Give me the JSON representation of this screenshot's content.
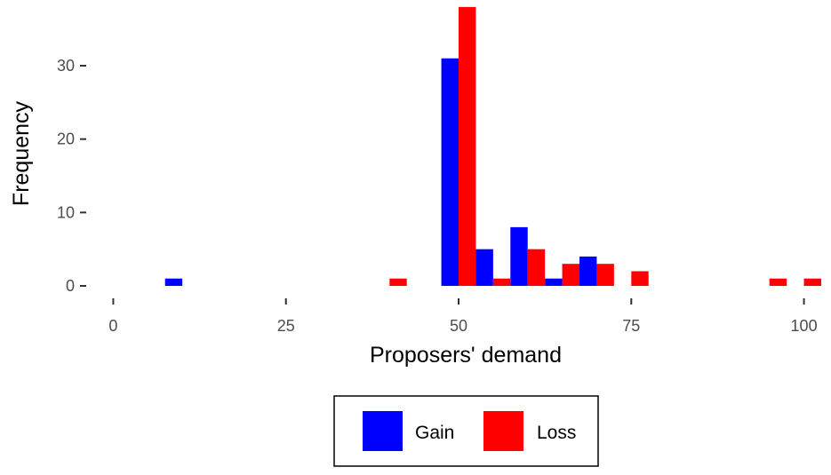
{
  "chart_data": {
    "type": "bar",
    "xlabel": "Proposers' demand",
    "ylabel": "Frequency",
    "xlim": [
      -2.5,
      102.5
    ],
    "ylim": [
      0,
      38
    ],
    "x_ticks": [
      0,
      25,
      50,
      75,
      100
    ],
    "y_ticks": [
      0,
      10,
      20,
      30
    ],
    "bin_width": 5,
    "grid": false,
    "legend_position": "bottom",
    "series": [
      {
        "name": "Gain",
        "color": "#0000ff",
        "bins": [
          10,
          50,
          55,
          60,
          65,
          70
        ],
        "values": [
          1,
          31,
          5,
          8,
          1,
          4
        ]
      },
      {
        "name": "Loss",
        "color": "#ff0000",
        "bins": [
          40,
          50,
          55,
          60,
          65,
          70,
          75,
          95,
          100
        ],
        "values": [
          1,
          38,
          1,
          5,
          3,
          3,
          2,
          1,
          1
        ]
      }
    ]
  }
}
